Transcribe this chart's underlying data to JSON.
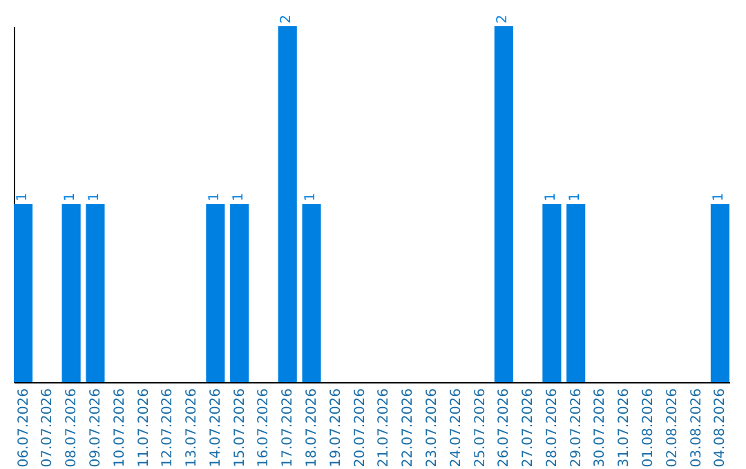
{
  "chart_data": {
    "type": "bar",
    "categories": [
      "06.07.2026",
      "07.07.2026",
      "08.07.2026",
      "09.07.2026",
      "10.07.2026",
      "11.07.2026",
      "12.07.2026",
      "13.07.2026",
      "14.07.2026",
      "15.07.2026",
      "16.07.2026",
      "17.07.2026",
      "18.07.2026",
      "19.07.2026",
      "20.07.2026",
      "21.07.2026",
      "22.07.2026",
      "23.07.2026",
      "24.07.2026",
      "25.07.2026",
      "26.07.2026",
      "27.07.2026",
      "28.07.2026",
      "29.07.2026",
      "30.07.2026",
      "31.07.2026",
      "01.08.2026",
      "02.08.2026",
      "03.08.2026",
      "04.08.2026"
    ],
    "values": [
      1,
      0,
      1,
      1,
      0,
      0,
      0,
      0,
      1,
      1,
      0,
      2,
      1,
      0,
      0,
      0,
      0,
      0,
      0,
      0,
      2,
      0,
      1,
      1,
      0,
      0,
      0,
      0,
      0,
      1
    ],
    "value_labels": [
      "1",
      null,
      "1",
      "1",
      null,
      null,
      null,
      null,
      "1",
      "1",
      null,
      "2",
      "1",
      null,
      null,
      null,
      null,
      null,
      null,
      null,
      "2",
      null,
      "1",
      "1",
      null,
      null,
      null,
      null,
      null,
      "1"
    ],
    "color": "#0080e0",
    "tick_labels": "x",
    "grid": false
  }
}
